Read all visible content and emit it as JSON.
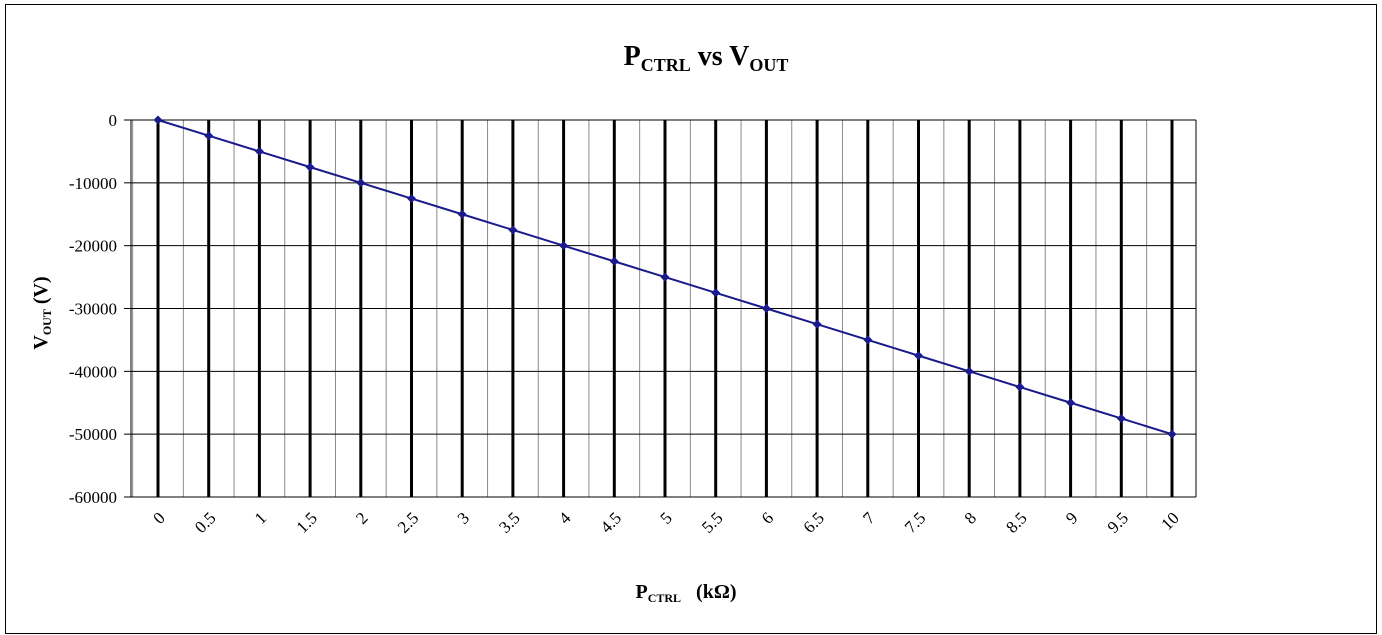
{
  "chart_data": {
    "type": "line",
    "title": {
      "main": "P",
      "main_sub": "CTRL",
      "mid": " vs ",
      "end": "V",
      "end_sub": "OUT"
    },
    "xlabel": {
      "main": "P",
      "sub": "CTRL",
      "unit": "   (kΩ)"
    },
    "ylabel": {
      "main": "V",
      "sub": "OUT",
      "unit": " (V)"
    },
    "x": [
      0,
      0.5,
      1,
      1.5,
      2,
      2.5,
      3,
      3.5,
      4,
      4.5,
      5,
      5.5,
      6,
      6.5,
      7,
      7.5,
      8,
      8.5,
      9,
      9.5,
      10
    ],
    "x_tick_labels": [
      "0",
      "0.5",
      "1",
      "1.5",
      "2",
      "2.5",
      "3",
      "3.5",
      "4",
      "4.5",
      "5",
      "5.5",
      "6",
      "6.5",
      "7",
      "7.5",
      "8",
      "8.5",
      "9",
      "9.5",
      "10"
    ],
    "series": [
      {
        "values": [
          0,
          -2500,
          -5000,
          -7500,
          -10000,
          -12500,
          -15000,
          -17500,
          -20000,
          -22500,
          -25000,
          -27500,
          -30000,
          -32500,
          -35000,
          -37500,
          -40000,
          -42500,
          -45000,
          -47500,
          -50000
        ],
        "color": "#1a1a8c"
      }
    ],
    "y_ticks": [
      0,
      -10000,
      -20000,
      -30000,
      -40000,
      -50000,
      -60000
    ],
    "y_tick_labels": [
      "0",
      "-10000",
      "-20000",
      "-30000",
      "-40000",
      "-50000",
      "-60000"
    ],
    "ylim": [
      -60000,
      0
    ],
    "xlim": [
      0,
      10
    ],
    "grid": true,
    "legend": "none"
  }
}
